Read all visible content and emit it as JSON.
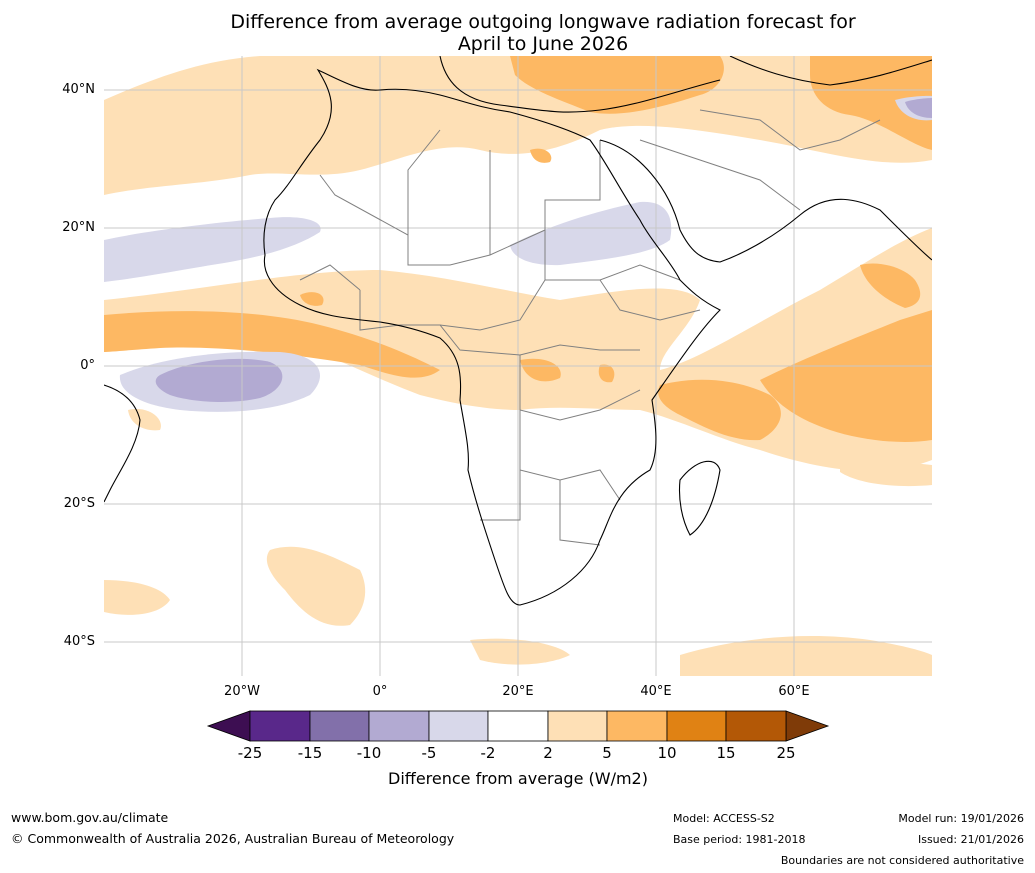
{
  "title": {
    "line1": "Difference from average outgoing longwave radiation forecast for",
    "line2": "April to June 2026"
  },
  "axes": {
    "lat_labels": [
      "40°N",
      "20°N",
      "0°",
      "20°S",
      "40°S"
    ],
    "lon_labels": [
      "20°W",
      "0°",
      "20°E",
      "40°E",
      "60°E"
    ]
  },
  "colorbar": {
    "title": "Difference from average (W/m2)",
    "tick_labels": [
      "-25",
      "-15",
      "-10",
      "-5",
      "-2",
      "2",
      "5",
      "10",
      "15",
      "25"
    ],
    "colors": [
      "#3d0e52",
      "#59288a",
      "#8270aa",
      "#b2aad2",
      "#d8d8ea",
      "#ffffff",
      "#fee0b6",
      "#fdb863",
      "#e08214",
      "#b35806",
      "#7f3b08"
    ]
  },
  "colors": {
    "land_outline": "#000000",
    "border": "#808080",
    "grid": "#c8c8c8",
    "neg_light": "#d8d8ea",
    "neg_mid": "#b2aad2",
    "pos_light": "#fee0b6",
    "pos_mid": "#fdb863"
  },
  "footer": {
    "website": "www.bom.gov.au/climate",
    "copyright": "© Commonwealth of Australia 2026, Australian Bureau of Meteorology",
    "model": "Model: ACCESS-S2",
    "base_period": "Base period: 1981-2018",
    "model_run": "Model run: 19/01/2026",
    "issued": "Issued: 21/01/2026",
    "disclaimer": "Boundaries are not considered authoritative"
  }
}
